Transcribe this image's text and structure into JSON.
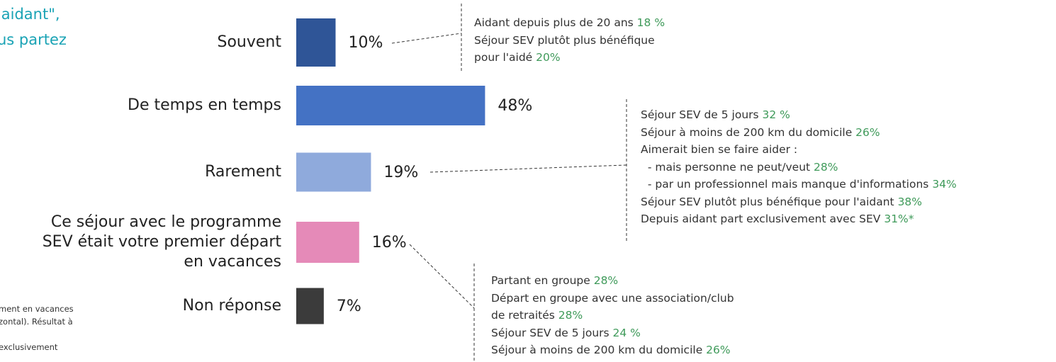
{
  "chart_data": {
    "type": "bar",
    "orientation": "horizontal",
    "categories": [
      "Souvent",
      "De temps en temps",
      "Rarement",
      "Ce séjour avec le programme SEV était votre premier départ en vacances",
      "Non réponse"
    ],
    "values": [
      10,
      48,
      19,
      16,
      7
    ],
    "value_labels": [
      "10%",
      "48%",
      "19%",
      "16%",
      "7%"
    ],
    "colors": [
      "#2f5597",
      "#4472c4",
      "#8faadc",
      "#e58ab8",
      "#3b3b3b"
    ]
  },
  "annotations": [
    {
      "lines": [
        {
          "text": "Aidant depuis plus de 20 ans ",
          "value": "18 %"
        },
        {
          "text": "Séjour SEV plutôt plus bénéfique"
        },
        {
          "text": "pour l'aidé ",
          "value": "20%"
        }
      ]
    },
    {
      "lines": [
        {
          "text": "Séjour SEV de 5 jours ",
          "value": "32 %"
        },
        {
          "text": "Séjour à moins de 200 km du domicile ",
          "value": "26%"
        },
        {
          "text": "Aimerait bien se faire aider :"
        },
        {
          "text": "  - mais personne ne peut/veut ",
          "value": "28%"
        },
        {
          "text": "  - par un professionnel mais manque d'informations ",
          "value": "34%"
        },
        {
          "text": "Séjour SEV plutôt plus bénéfique pour l'aidant ",
          "value": "38%"
        },
        {
          "text": "Depuis aidant part exclusivement avec SEV ",
          "value": "31%*"
        }
      ]
    },
    {
      "lines": [
        {
          "text": "Partant en groupe ",
          "value": "28%"
        },
        {
          "text": "Départ en groupe avec une association/club"
        },
        {
          "text": "de retraités ",
          "value": "28%"
        },
        {
          "text": "Séjour SEV de 5 jours ",
          "value": "24 %"
        },
        {
          "text": "Séjour à moins de 200 km du domicile ",
          "value": "26%"
        }
      ]
    }
  ],
  "left_fragments": {
    "heading": [
      "'aidant\",",
      "us partez"
    ],
    "footnote": [
      "ment en vacances",
      "zontal). Résultat à",
      "exclusivement"
    ]
  }
}
